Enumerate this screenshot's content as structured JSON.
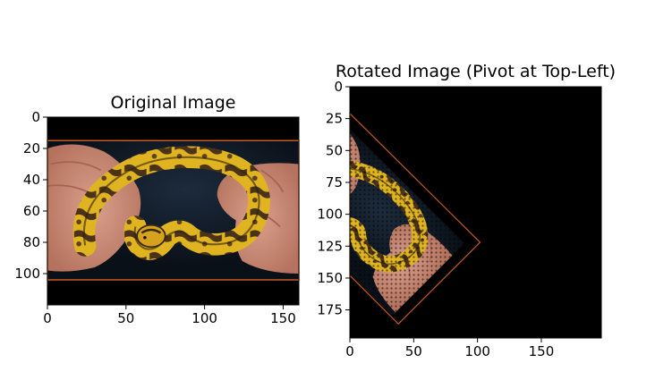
{
  "chart_data": [
    {
      "type": "image",
      "title": "Original Image",
      "xlim": [
        0,
        160
      ],
      "ylim": [
        120,
        0
      ],
      "xticks": [
        0,
        50,
        100,
        150
      ],
      "yticks": [
        0,
        20,
        40,
        60,
        80,
        100
      ],
      "xticklabels": [
        "0",
        "50",
        "100",
        "150"
      ],
      "yticklabels": [
        "0",
        "20",
        "40",
        "60",
        "80",
        "100"
      ],
      "content": "photo of a yellow-and-brown ball python held in two hands on a black background",
      "bbox_outline_color": "#c85a1e",
      "bbox_outline": {
        "x0": 0,
        "y0": 15,
        "x1": 160,
        "y1": 104
      }
    },
    {
      "type": "image",
      "title": "Rotated Image (Pivot at Top-Left)",
      "xlim": [
        0,
        197
      ],
      "ylim": [
        197,
        0
      ],
      "xticks": [
        0,
        50,
        100,
        150
      ],
      "yticks": [
        0,
        25,
        50,
        75,
        100,
        125,
        150,
        175
      ],
      "xticklabels": [
        "0",
        "50",
        "100",
        "150"
      ],
      "yticklabels": [
        "0",
        "25",
        "50",
        "75",
        "100",
        "125",
        "150",
        "175"
      ],
      "content": "same photo rotated 45 degrees about its top-left corner, clipped by the canvas, with a dotted overlay",
      "rotation_deg": 45,
      "bbox_outline_color": "#c85a1e",
      "bbox_outline": [
        [
          0,
          21
        ],
        [
          102,
          122
        ],
        [
          38,
          186
        ],
        [
          0,
          148
        ]
      ]
    }
  ]
}
